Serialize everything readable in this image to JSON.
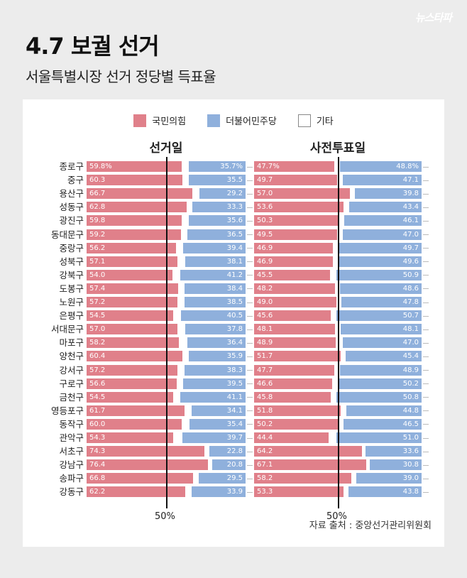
{
  "brand": "뉴스타파",
  "title": "4.7 보궐 선거",
  "subtitle": "서울특별시장 선거 정당별 득표율",
  "legend": [
    {
      "label": "국민의힘",
      "color": "#e0808a"
    },
    {
      "label": "더불어민주당",
      "color": "#8fb0dc"
    },
    {
      "label": "기타",
      "color": "#ffffff"
    }
  ],
  "source": "자료 출처 : 중앙선거관리위원회",
  "chart_data": [
    {
      "type": "bar",
      "title": "선거일",
      "axis_label": "50%",
      "categories": [
        "종로구",
        "중구",
        "용산구",
        "성동구",
        "광진구",
        "동대문구",
        "중랑구",
        "성북구",
        "강북구",
        "도봉구",
        "노원구",
        "은평구",
        "서대문구",
        "마포구",
        "양천구",
        "강서구",
        "구로구",
        "금천구",
        "영등포구",
        "동작구",
        "관악구",
        "서초구",
        "강남구",
        "송파구",
        "강동구"
      ],
      "series": [
        {
          "name": "국민의힘",
          "labels": [
            "59.8%",
            "60.3",
            "66.7",
            "62.8",
            "59.8",
            "59.2",
            "56.2",
            "57.1",
            "54.0",
            "57.4",
            "57.2",
            "54.5",
            "57.0",
            "58.2",
            "60.4",
            "57.2",
            "56.6",
            "54.5",
            "61.7",
            "60.0",
            "54.3",
            "74.3",
            "76.4",
            "66.8",
            "62.2"
          ],
          "values": [
            59.8,
            60.3,
            66.7,
            62.8,
            59.8,
            59.2,
            56.2,
            57.1,
            54.0,
            57.4,
            57.2,
            54.5,
            57.0,
            58.2,
            60.4,
            57.2,
            56.6,
            54.5,
            61.7,
            60.0,
            54.3,
            74.3,
            76.4,
            66.8,
            62.2
          ]
        },
        {
          "name": "더불어민주당",
          "labels": [
            "35.7%",
            "35.5",
            "29.2",
            "33.3",
            "35.6",
            "36.5",
            "39.4",
            "38.1",
            "41.2",
            "38.4",
            "38.5",
            "40.5",
            "37.8",
            "36.4",
            "35.9",
            "38.3",
            "39.5",
            "41.1",
            "34.1",
            "35.4",
            "39.7",
            "22.8",
            "20.8",
            "29.5",
            "33.9"
          ],
          "values": [
            35.7,
            35.5,
            29.2,
            33.3,
            35.6,
            36.5,
            39.4,
            38.1,
            41.2,
            38.4,
            38.5,
            40.5,
            37.8,
            36.4,
            35.9,
            38.3,
            39.5,
            41.1,
            34.1,
            35.4,
            39.7,
            22.8,
            20.8,
            29.5,
            33.9
          ]
        }
      ]
    },
    {
      "type": "bar",
      "title": "사전투표일",
      "axis_label": "50%",
      "categories": [
        "종로구",
        "중구",
        "용산구",
        "성동구",
        "광진구",
        "동대문구",
        "중랑구",
        "성북구",
        "강북구",
        "도봉구",
        "노원구",
        "은평구",
        "서대문구",
        "마포구",
        "양천구",
        "강서구",
        "구로구",
        "금천구",
        "영등포구",
        "동작구",
        "관악구",
        "서초구",
        "강남구",
        "송파구",
        "강동구"
      ],
      "series": [
        {
          "name": "국민의힘",
          "labels": [
            "47.7%",
            "49.7",
            "57.0",
            "53.6",
            "50.3",
            "49.5",
            "46.9",
            "46.9",
            "45.5",
            "48.2",
            "49.0",
            "45.6",
            "48.1",
            "48.9",
            "51.7",
            "47.7",
            "46.6",
            "45.8",
            "51.8",
            "50.2",
            "44.4",
            "64.2",
            "67.1",
            "58.2",
            "53.3"
          ],
          "values": [
            47.7,
            49.7,
            57.0,
            53.6,
            50.3,
            49.5,
            46.9,
            46.9,
            45.5,
            48.2,
            49.0,
            45.6,
            48.1,
            48.9,
            51.7,
            47.7,
            46.6,
            45.8,
            51.8,
            50.2,
            44.4,
            64.2,
            67.1,
            58.2,
            53.3
          ]
        },
        {
          "name": "더불어민주당",
          "labels": [
            "48.8%",
            "47.1",
            "39.8",
            "43.4",
            "46.1",
            "47.0",
            "49.7",
            "49.6",
            "50.9",
            "48.6",
            "47.8",
            "50.7",
            "48.1",
            "47.0",
            "45.4",
            "48.9",
            "50.2",
            "50.8",
            "44.8",
            "46.5",
            "51.0",
            "33.6",
            "30.8",
            "39.0",
            "43.8"
          ],
          "values": [
            48.8,
            47.1,
            39.8,
            43.4,
            46.1,
            47.0,
            49.7,
            49.6,
            50.9,
            48.6,
            47.8,
            50.7,
            48.1,
            47.0,
            45.4,
            48.9,
            50.2,
            50.8,
            44.8,
            46.5,
            51.0,
            33.6,
            30.8,
            39.0,
            43.8
          ]
        }
      ]
    }
  ]
}
